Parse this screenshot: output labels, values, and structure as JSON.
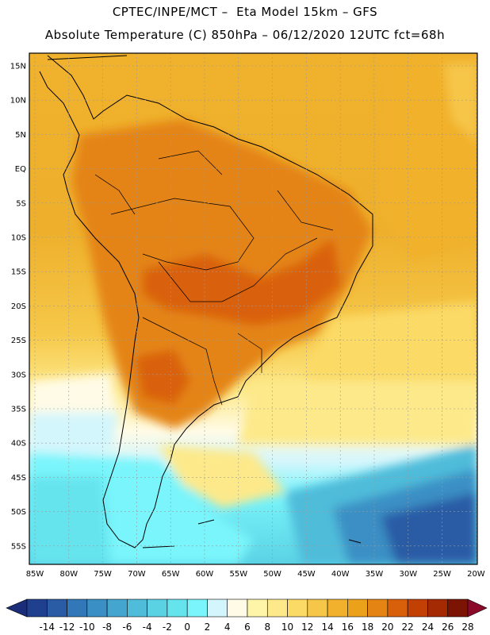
{
  "header": {
    "line1": "CPTEC/INPE/MCT –  Eta Model 15km – GFS",
    "line2": "Absolute Temperature (C) 850hPa – 06/12/2020 12UTC fct=68h"
  },
  "map": {
    "lat_labels": [
      "15N",
      "10N",
      "5N",
      "EQ",
      "5S",
      "10S",
      "15S",
      "20S",
      "25S",
      "30S",
      "35S",
      "40S",
      "45S",
      "50S",
      "55S"
    ],
    "lon_labels": [
      "85W",
      "80W",
      "75W",
      "70W",
      "65W",
      "60W",
      "55W",
      "50W",
      "45W",
      "40W",
      "35W",
      "30W",
      "25W",
      "20W"
    ],
    "grid": true
  },
  "colorbar": {
    "labels": [
      "-14",
      "-12",
      "-10",
      "-8",
      "-6",
      "-4",
      "-2",
      "0",
      "2",
      "4",
      "6",
      "8",
      "10",
      "12",
      "14",
      "16",
      "18",
      "20",
      "22",
      "24",
      "26",
      "28"
    ],
    "colors": [
      "#1f3f8f",
      "#2a5ca6",
      "#3278b8",
      "#3a8fc4",
      "#44a6cf",
      "#4fbcda",
      "#5ad2e4",
      "#66e4ee",
      "#79f5fb",
      "#d3f6fc",
      "#fffbe6",
      "#fff5a8",
      "#fde98a",
      "#fbda66",
      "#f6c648",
      "#f1b12c",
      "#ebA11a",
      "#e48412",
      "#d9600a",
      "#c34004",
      "#a42a03",
      "#7c1404"
    ],
    "left_arrow_color": "#1b2d78",
    "right_arrow_color": "#8b0a2a"
  }
}
